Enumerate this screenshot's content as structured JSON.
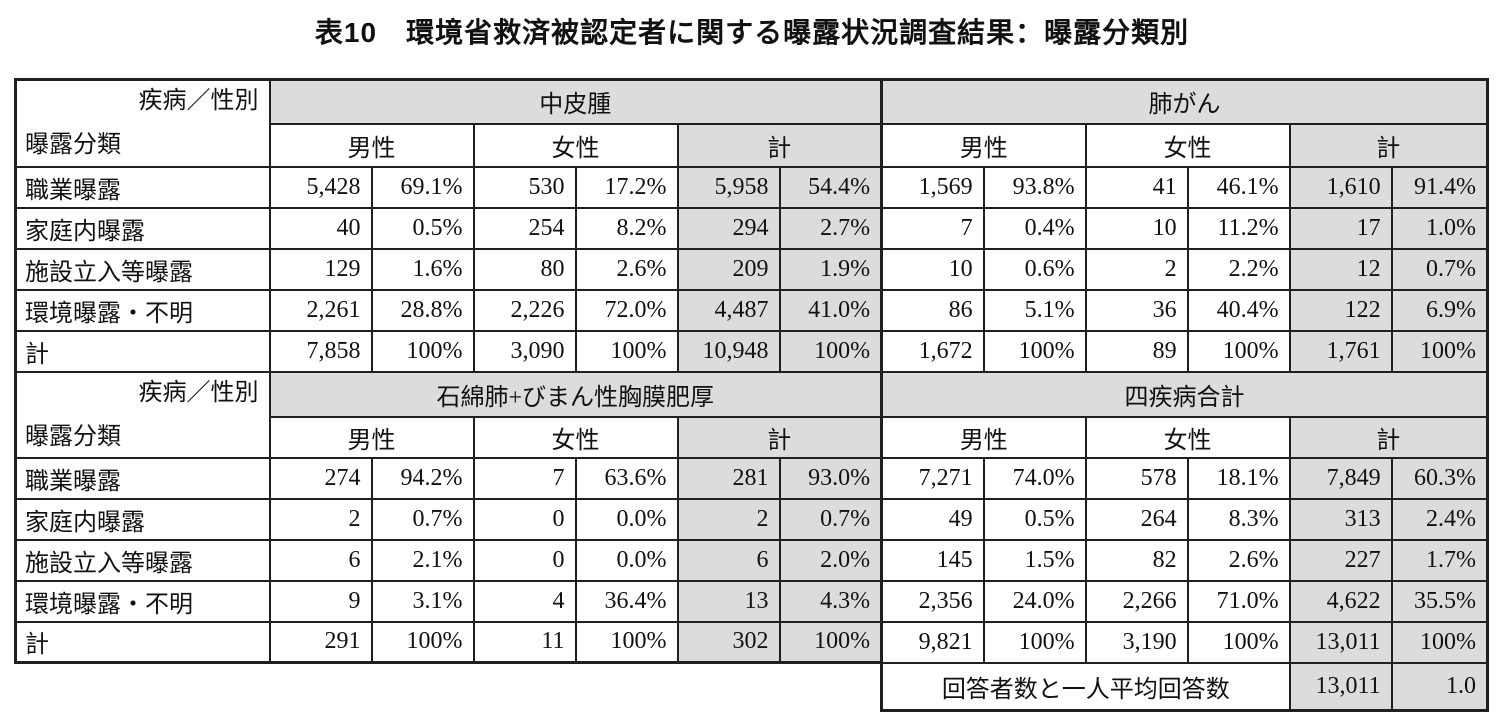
{
  "title": "表10　環境省救済被認定者に関する曝露状況調査結果：曝露分類別",
  "colors": {
    "header_gray": "#dcdcdc",
    "border": "#202020",
    "background": "#ffffff"
  },
  "table": {
    "corner": {
      "top": "疾病／性別",
      "bottom": "曝露分類"
    },
    "gender_headers": [
      "男性",
      "女性",
      "計"
    ],
    "sections": [
      {
        "disease_left": "中皮腫",
        "disease_right": "肺がん",
        "rows": [
          {
            "label": "職業曝露",
            "cells": [
              "5,428",
              "69.1%",
              "530",
              "17.2%",
              "5,958",
              "54.4%",
              "1,569",
              "93.8%",
              "41",
              "46.1%",
              "1,610",
              "91.4%"
            ]
          },
          {
            "label": "家庭内曝露",
            "cells": [
              "40",
              "0.5%",
              "254",
              "8.2%",
              "294",
              "2.7%",
              "7",
              "0.4%",
              "10",
              "11.2%",
              "17",
              "1.0%"
            ]
          },
          {
            "label": "施設立入等曝露",
            "cells": [
              "129",
              "1.6%",
              "80",
              "2.6%",
              "209",
              "1.9%",
              "10",
              "0.6%",
              "2",
              "2.2%",
              "12",
              "0.7%"
            ]
          },
          {
            "label": "環境曝露・不明",
            "cells": [
              "2,261",
              "28.8%",
              "2,226",
              "72.0%",
              "4,487",
              "41.0%",
              "86",
              "5.1%",
              "36",
              "40.4%",
              "122",
              "6.9%"
            ]
          },
          {
            "label": "計",
            "cells": [
              "7,858",
              "100%",
              "3,090",
              "100%",
              "10,948",
              "100%",
              "1,672",
              "100%",
              "89",
              "100%",
              "1,761",
              "100%"
            ]
          }
        ]
      },
      {
        "disease_left": "石綿肺+びまん性胸膜肥厚",
        "disease_right": "四疾病合計",
        "rows": [
          {
            "label": "職業曝露",
            "cells": [
              "274",
              "94.2%",
              "7",
              "63.6%",
              "281",
              "93.0%",
              "7,271",
              "74.0%",
              "578",
              "18.1%",
              "7,849",
              "60.3%"
            ]
          },
          {
            "label": "家庭内曝露",
            "cells": [
              "2",
              "0.7%",
              "0",
              "0.0%",
              "2",
              "0.7%",
              "49",
              "0.5%",
              "264",
              "8.3%",
              "313",
              "2.4%"
            ]
          },
          {
            "label": "施設立入等曝露",
            "cells": [
              "6",
              "2.1%",
              "0",
              "0.0%",
              "6",
              "2.0%",
              "145",
              "1.5%",
              "82",
              "2.6%",
              "227",
              "1.7%"
            ]
          },
          {
            "label": "環境曝露・不明",
            "cells": [
              "9",
              "3.1%",
              "4",
              "36.4%",
              "13",
              "4.3%",
              "2,356",
              "24.0%",
              "2,266",
              "71.0%",
              "4,622",
              "35.5%"
            ]
          },
          {
            "label": "計",
            "cells": [
              "291",
              "100%",
              "11",
              "100%",
              "302",
              "100%",
              "9,821",
              "100%",
              "3,190",
              "100%",
              "13,011",
              "100%"
            ]
          }
        ]
      }
    ],
    "footer": {
      "label": "回答者数と一人平均回答数",
      "count": "13,011",
      "avg": "1.0"
    }
  }
}
